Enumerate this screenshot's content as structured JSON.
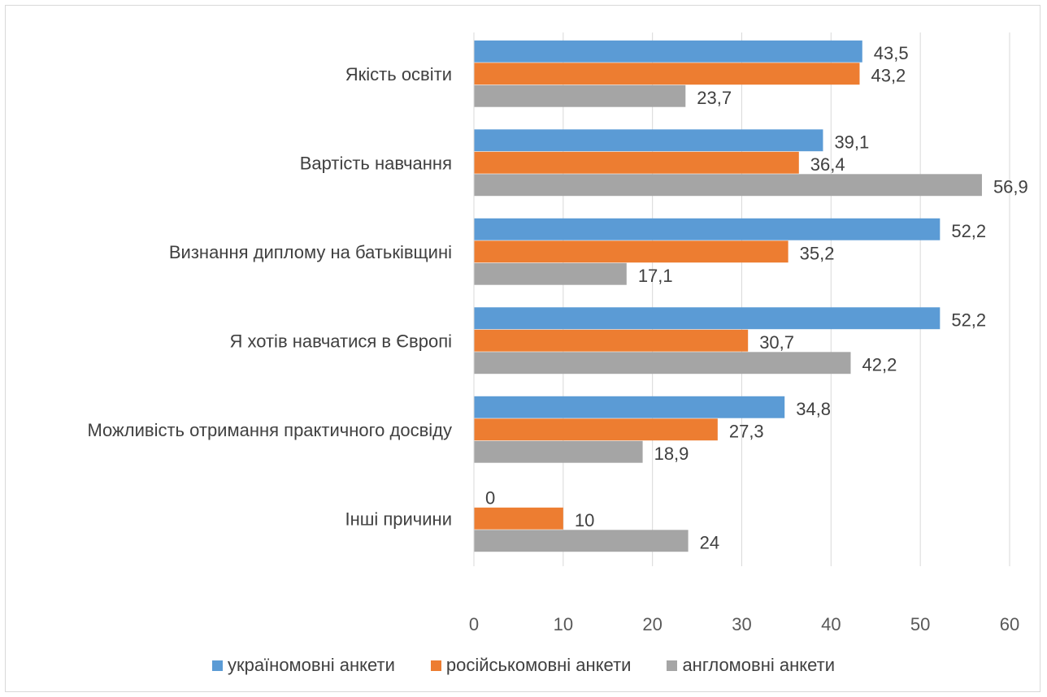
{
  "chart_data": {
    "type": "bar",
    "orientation": "horizontal",
    "categories": [
      "Якість освіти",
      "Вартість навчання",
      "Визнання диплому на батьківщині",
      "Я хотів навчатися в Європі",
      "Можливість отримання практичного досвіду",
      "Інші причини"
    ],
    "series": [
      {
        "name": "україномовні анкети",
        "color": "#5b9bd5",
        "values": [
          43.5,
          39.1,
          52.2,
          52.2,
          34.8,
          0
        ],
        "labels": [
          "43,5",
          "39,1",
          "52,2",
          "52,2",
          "34,8",
          "0"
        ]
      },
      {
        "name": "російськомовні анкети",
        "color": "#ed7d31",
        "values": [
          43.2,
          36.4,
          35.2,
          30.7,
          27.3,
          10
        ],
        "labels": [
          "43,2",
          "36,4",
          "35,2",
          "30,7",
          "27,3",
          "10"
        ]
      },
      {
        "name": "англомовні анкети",
        "color": "#a5a5a5",
        "values": [
          23.7,
          56.9,
          17.1,
          42.2,
          18.9,
          24
        ],
        "labels": [
          "23,7",
          "56,9",
          "17,1",
          "42,2",
          "18,9",
          "24"
        ]
      }
    ],
    "xlim": [
      0,
      60
    ],
    "xticks": [
      "0",
      "10",
      "20",
      "30",
      "40",
      "50",
      "60"
    ],
    "grid": true,
    "legend_position": "bottom",
    "title": "",
    "xlabel": "",
    "ylabel": ""
  }
}
